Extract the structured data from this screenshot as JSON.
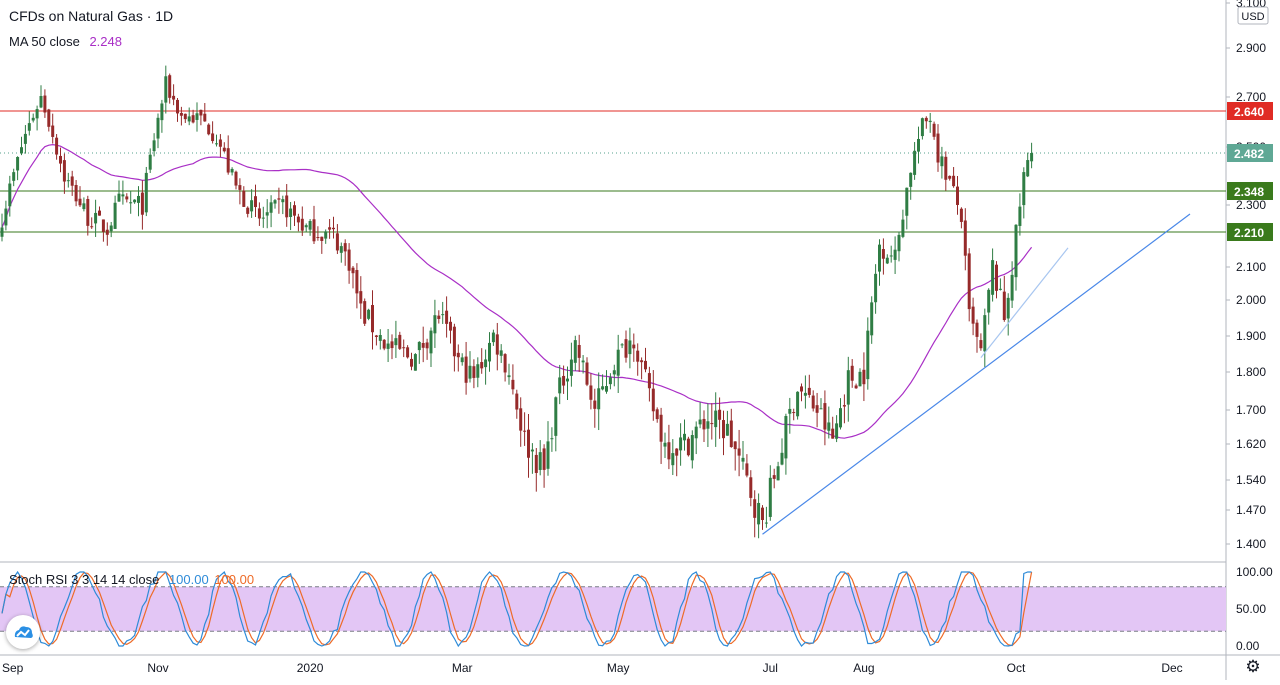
{
  "chart_data": {
    "type": "candlestick",
    "title": "CFDs on Natural Gas · 1D",
    "indicator": {
      "label": "MA 50 close",
      "value": "2.248"
    },
    "currency": "USD",
    "y_ticks": [
      "3.100",
      "2.900",
      "2.700",
      "2.500",
      "2.300",
      "2.100",
      "2.000",
      "1.900",
      "1.800",
      "1.700",
      "1.620",
      "1.540",
      "1.470",
      "1.400"
    ],
    "x_ticks": [
      "Sep",
      "Nov",
      "2020",
      "Mar",
      "May",
      "Jul",
      "Aug",
      "Oct",
      "Dec"
    ],
    "levels": [
      {
        "value": 2.64,
        "label": "2.640",
        "color": "#e02b24"
      },
      {
        "value": 2.482,
        "label": "2.482",
        "color": "#56a08e",
        "dotted": true
      },
      {
        "value": 2.348,
        "label": "2.348",
        "color": "#3a7a1c"
      },
      {
        "value": 2.21,
        "label": "2.210",
        "color": "#3a7a1c"
      }
    ],
    "colors": {
      "up": "#2f7d44",
      "down": "#962a2a",
      "ma": "#a92fc6",
      "trend": "#4a88e8",
      "stoch_k": "#2e8bd8",
      "stoch_d": "#ee6b28",
      "stoch_band": "#e3c6f5"
    },
    "candles": {
      "count": 265,
      "high": 2.78,
      "high_index": 42,
      "low": 1.42,
      "low_index": 195,
      "last_close": 2.482
    },
    "oscillator": {
      "label": "Stoch RSI 3 3 14 14 close",
      "k": "100.00",
      "d": "100.00",
      "y_ticks": [
        "100.00",
        "50.00",
        "0.00"
      ],
      "bands": [
        80,
        20
      ]
    }
  }
}
